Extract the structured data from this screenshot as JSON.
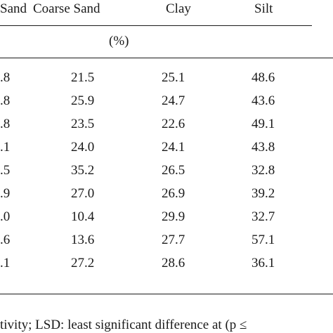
{
  "table": {
    "headers": {
      "fine_sand_partial": "Sand",
      "coarse_sand": "Coarse Sand",
      "clay": "Clay",
      "silt": "Silt"
    },
    "unit": "(%)",
    "rows": [
      {
        "fine": ".8",
        "coarse": "21.5",
        "clay": "25.1",
        "silt": "48.6"
      },
      {
        "fine": ".8",
        "coarse": "25.9",
        "clay": "24.7",
        "silt": "43.6"
      },
      {
        "fine": ".8",
        "coarse": "23.5",
        "clay": "22.6",
        "silt": "49.1"
      },
      {
        "fine": ".1",
        "coarse": "24.0",
        "clay": "24.1",
        "silt": "43.8"
      },
      {
        "fine": ".5",
        "coarse": "35.2",
        "clay": "26.5",
        "silt": "32.8"
      },
      {
        "fine": ".9",
        "coarse": "27.0",
        "clay": "26.9",
        "silt": "39.2"
      },
      {
        "fine": ".0",
        "coarse": "10.4",
        "clay": "29.9",
        "silt": "32.7"
      },
      {
        "fine": ".6",
        "coarse": "13.6",
        "clay": "27.7",
        "silt": "57.1"
      },
      {
        "fine": ".1",
        "coarse": "27.2",
        "clay": "28.6",
        "silt": "36.1"
      }
    ]
  },
  "footnote": "tivity; LSD: least significant difference at (p ≤"
}
